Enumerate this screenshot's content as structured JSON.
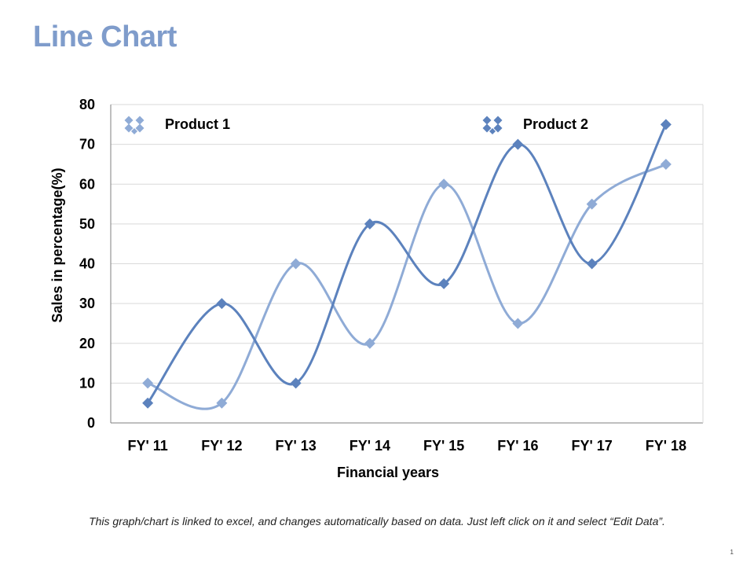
{
  "page": {
    "title": "Line Chart",
    "footer_note": "This graph/chart is linked to excel, and changes automatically based on data. Just left click on it and select “Edit Data”.",
    "page_number": "1"
  },
  "colors": {
    "title": "#7f9ccb",
    "series_1": "#8fabd6",
    "series_2": "#5c82bd",
    "gridline": "#d9d9d9",
    "axis": "#7f7f7f"
  },
  "chart_data": {
    "type": "line",
    "smooth": true,
    "marker": "diamond",
    "categories": [
      "FY' 11",
      "FY' 12",
      "FY' 13",
      "FY' 14",
      "FY' 15",
      "FY' 16",
      "FY' 17",
      "FY' 18"
    ],
    "series": [
      {
        "name": "Product 1",
        "values": [
          10,
          5,
          40,
          20,
          60,
          25,
          55,
          65
        ]
      },
      {
        "name": "Product 2",
        "values": [
          5,
          30,
          10,
          50,
          35,
          70,
          40,
          75
        ]
      }
    ],
    "xlabel": "Financial years",
    "ylabel": "Sales in percentage(%)",
    "ylim": [
      0,
      80
    ],
    "yticks": [
      0,
      10,
      20,
      30,
      40,
      50,
      60,
      70,
      80
    ],
    "grid": true,
    "legend_position": "top"
  }
}
